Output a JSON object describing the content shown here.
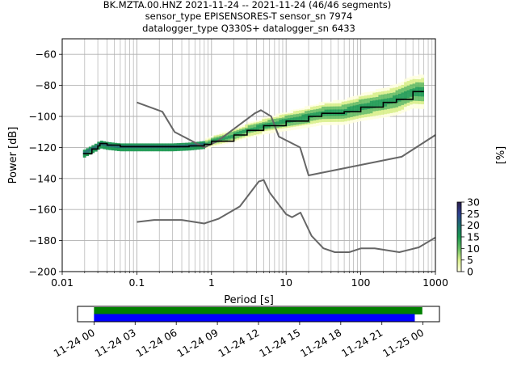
{
  "chart_data": [
    {
      "type": "heatmap",
      "title_lines": [
        "BK.MZTA.00.HNZ   2021-11-24 -- 2021-11-24  (46/46 segments)",
        "sensor_type EPISENSORES-T sensor_sn 7974",
        "datalogger_type Q330S+ datalogger_sn 6433"
      ],
      "xlabel": "Period [s]",
      "ylabel": "Power [dB]",
      "xscale": "log",
      "xlim": [
        0.01,
        1000
      ],
      "ylim": [
        -200,
        -50
      ],
      "xticks": [
        0.01,
        0.1,
        1,
        10,
        100,
        1000
      ],
      "xtick_labels": [
        "0.01",
        "0.1",
        "1",
        "10",
        "100",
        "1000"
      ],
      "yticks": [
        -200,
        -180,
        -160,
        -140,
        -120,
        -100,
        -80,
        -60
      ],
      "ytick_labels": [
        "−200",
        "−180",
        "−160",
        "−140",
        "−120",
        "−100",
        "−80",
        "−60"
      ],
      "grid": true,
      "noise_models": [
        {
          "points": [
            [
              0.1,
              -91
            ],
            [
              0.22,
              -97
            ],
            [
              0.32,
              -110
            ],
            [
              0.8,
              -120
            ],
            [
              1.2,
              -116
            ],
            [
              3.8,
              -98
            ],
            [
              4.6,
              -96
            ],
            [
              6.3,
              -100
            ],
            [
              8,
              -113
            ],
            [
              15.4,
              -120
            ],
            [
              20,
              -138
            ],
            [
              354,
              -126
            ],
            [
              1000,
              -112
            ]
          ]
        },
        {
          "points": [
            [
              0.1,
              -168
            ],
            [
              0.17,
              -166.7
            ],
            [
              0.4,
              -166.7
            ],
            [
              0.8,
              -169
            ],
            [
              1.24,
              -166
            ],
            [
              2.4,
              -158
            ],
            [
              4.3,
              -142
            ],
            [
              5,
              -141
            ],
            [
              6,
              -149
            ],
            [
              10,
              -163
            ],
            [
              12,
              -165
            ],
            [
              15.6,
              -162
            ],
            [
              21.9,
              -177
            ],
            [
              31.6,
              -185
            ],
            [
              45,
              -187.5
            ],
            [
              70,
              -187.5
            ],
            [
              101,
              -185
            ],
            [
              154,
              -185
            ],
            [
              328,
              -187.5
            ],
            [
              600,
              -184.4
            ],
            [
              1000,
              -178
            ]
          ]
        }
      ],
      "mode_line": [
        [
          0.019,
          -124
        ],
        [
          0.025,
          -121
        ],
        [
          0.03,
          -119
        ],
        [
          0.032,
          -117.5
        ],
        [
          0.04,
          -118.5
        ],
        [
          0.06,
          -119.5
        ],
        [
          0.1,
          -119.5
        ],
        [
          0.3,
          -119.5
        ],
        [
          0.5,
          -119
        ],
        [
          0.8,
          -118
        ],
        [
          1,
          -116
        ],
        [
          2,
          -112
        ],
        [
          3,
          -109
        ],
        [
          5,
          -106
        ],
        [
          10,
          -103
        ],
        [
          20,
          -100
        ],
        [
          30,
          -98
        ],
        [
          60,
          -97
        ],
        [
          100,
          -94
        ],
        [
          200,
          -91
        ],
        [
          300,
          -89
        ],
        [
          500,
          -84
        ],
        [
          700,
          -84
        ]
      ],
      "colorbar": {
        "label": "[%]",
        "range": [
          0,
          30
        ],
        "ticks": [
          0,
          5,
          10,
          15,
          20,
          25,
          30
        ],
        "colors": [
          "#ffffe0",
          "#d9ef8b",
          "#66bd63",
          "#1a9850",
          "#1d6f6e",
          "#2c3e8f",
          "#2a1f4b"
        ]
      }
    },
    {
      "type": "bar",
      "subtype": "timeline",
      "xtick_labels": [
        "11-24 00",
        "11-24 03",
        "11-24 06",
        "11-24 09",
        "11-24 12",
        "11-24 15",
        "11-24 18",
        "11-24 21",
        "11-25 00"
      ],
      "xtick_hours": [
        0,
        3,
        6,
        9,
        12,
        15,
        18,
        21,
        24
      ],
      "xlim_hours": [
        -1.2,
        25.2
      ],
      "segments": [
        {
          "color": "#008000",
          "start_hours": 0,
          "end_hours": 23.95
        },
        {
          "color": "#0000ff",
          "start_hours": 0,
          "end_hours": 23.4
        }
      ]
    }
  ]
}
